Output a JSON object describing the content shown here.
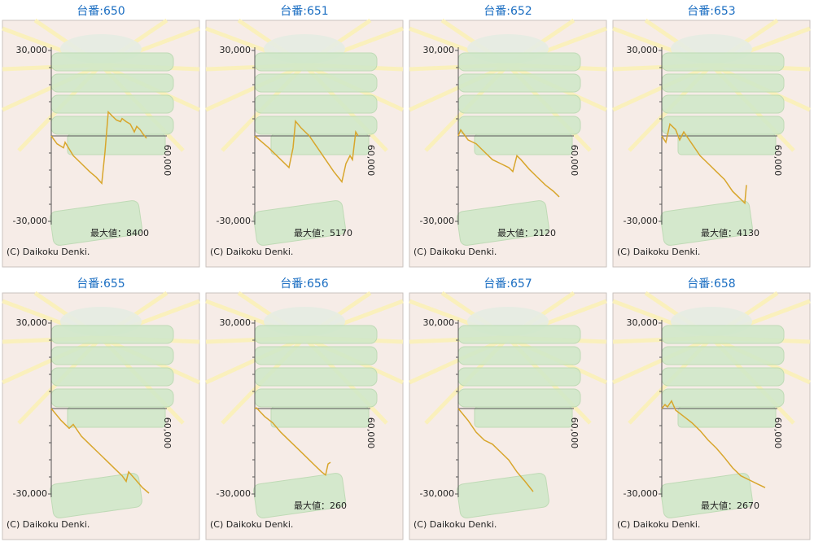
{
  "chart_data": [
    {
      "type": "line",
      "title": "台番:650",
      "color": "#d8a62c",
      "xlim": [
        0,
        60000
      ],
      "ylim": [
        -30000,
        30000
      ],
      "yticks": [
        {
          "value": 30000,
          "label": "30,000"
        },
        {
          "value": -30000,
          "label": "-30,000"
        }
      ],
      "yticks_minor": [
        -24000,
        -18000,
        -12000,
        -6000,
        6000,
        12000,
        18000,
        24000
      ],
      "xticks": [
        {
          "value": 60000,
          "label": "60,000"
        }
      ],
      "x": [
        0,
        2960,
        6340,
        7180,
        11410,
        15630,
        19860,
        23240,
        26200,
        27890,
        29580,
        31690,
        33800,
        35910,
        36760,
        38870,
        40980,
        43100,
        44360,
        46050,
        47740,
        49430
      ],
      "values": [
        0,
        -2780,
        -4170,
        -2220,
        -6950,
        -9720,
        -12500,
        -14450,
        -16670,
        -5560,
        8400,
        6950,
        5560,
        5000,
        6110,
        5000,
        4170,
        1390,
        3330,
        2220,
        560,
        -830
      ],
      "annotation": "最大値：8400",
      "footer": "(C) Daikoku Denki."
    },
    {
      "type": "line",
      "title": "台番:651",
      "color": "#d8a62c",
      "xlim": [
        0,
        60000
      ],
      "ylim": [
        -30000,
        30000
      ],
      "yticks": [
        {
          "value": 30000,
          "label": "30,000"
        },
        {
          "value": -30000,
          "label": "-30,000"
        }
      ],
      "yticks_minor": [
        -24000,
        -18000,
        -12000,
        -6000,
        6000,
        12000,
        18000,
        24000
      ],
      "xticks": [
        {
          "value": 60000,
          "label": "60,000"
        }
      ],
      "x": [
        0,
        7180,
        11410,
        17750,
        19860,
        21130,
        24080,
        28310,
        32530,
        36760,
        40980,
        45210,
        47320,
        49430,
        50700,
        52390,
        53660
      ],
      "values": [
        0,
        -4170,
        -6950,
        -11110,
        -4170,
        5170,
        2780,
        0,
        -4170,
        -8330,
        -12500,
        -16110,
        -9720,
        -6950,
        -8330,
        1390,
        0
      ],
      "annotation": "最大値：5170",
      "footer": "(C) Daikoku Denki."
    },
    {
      "type": "line",
      "title": "台番:652",
      "color": "#d8a62c",
      "xlim": [
        0,
        60000
      ],
      "ylim": [
        -30000,
        30000
      ],
      "yticks": [
        {
          "value": 30000,
          "label": "30,000"
        },
        {
          "value": -30000,
          "label": "-30,000"
        }
      ],
      "yticks_minor": [
        -24000,
        -18000,
        -12000,
        -6000,
        6000,
        12000,
        18000,
        24000
      ],
      "xticks": [
        {
          "value": 60000,
          "label": "60,000"
        }
      ],
      "x": [
        0,
        1270,
        2960,
        5070,
        9300,
        13520,
        17750,
        21970,
        26200,
        28310,
        30420,
        32530,
        36760,
        40980,
        45210,
        49430,
        52390
      ],
      "values": [
        0,
        2120,
        560,
        -1390,
        -2780,
        -5560,
        -8330,
        -9720,
        -11110,
        -12500,
        -6950,
        -8330,
        -11670,
        -14450,
        -17220,
        -19450,
        -21390
      ],
      "annotation": "最大値：2120",
      "footer": "(C) Daikoku Denki."
    },
    {
      "type": "line",
      "title": "台番:653",
      "color": "#d8a62c",
      "xlim": [
        0,
        60000
      ],
      "ylim": [
        -30000,
        30000
      ],
      "yticks": [
        {
          "value": 30000,
          "label": "30,000"
        },
        {
          "value": -30000,
          "label": "-30,000"
        }
      ],
      "yticks_minor": [
        -24000,
        -18000,
        -12000,
        -6000,
        6000,
        12000,
        18000,
        24000
      ],
      "xticks": [
        {
          "value": 60000,
          "label": "60,000"
        }
      ],
      "x": [
        0,
        2110,
        4230,
        7180,
        9300,
        11410,
        15630,
        19860,
        24080,
        28310,
        32530,
        36760,
        40980,
        43100,
        43940
      ],
      "values": [
        0,
        -2220,
        4130,
        2220,
        -1390,
        1390,
        -2780,
        -6950,
        -9720,
        -12500,
        -15280,
        -19450,
        -22220,
        -23610,
        -17220
      ],
      "annotation": "最大値：4130",
      "footer": "(C) Daikoku Denki."
    },
    {
      "type": "line",
      "title": "台番:655",
      "color": "#d8a62c",
      "xlim": [
        0,
        60000
      ],
      "ylim": [
        -30000,
        30000
      ],
      "yticks": [
        {
          "value": 30000,
          "label": "30,000"
        },
        {
          "value": -30000,
          "label": "-30,000"
        }
      ],
      "yticks_minor": [
        -24000,
        -18000,
        -12000,
        -6000,
        6000,
        12000,
        18000,
        24000
      ],
      "xticks": [
        {
          "value": 60000,
          "label": "60,000"
        }
      ],
      "x": [
        0,
        5070,
        9300,
        11410,
        15630,
        19860,
        24080,
        28310,
        32530,
        36760,
        38870,
        40140,
        43100,
        47320,
        50700
      ],
      "values": [
        0,
        -4170,
        -6950,
        -5560,
        -9720,
        -12500,
        -15280,
        -18060,
        -20830,
        -23610,
        -25560,
        -22220,
        -24450,
        -27780,
        -29720
      ],
      "footer": "(C) Daikoku Denki."
    },
    {
      "type": "line",
      "title": "台番:656",
      "color": "#d8a62c",
      "xlim": [
        0,
        60000
      ],
      "ylim": [
        -30000,
        30000
      ],
      "yticks": [
        {
          "value": 30000,
          "label": "30,000"
        },
        {
          "value": -30000,
          "label": "-30,000"
        }
      ],
      "yticks_minor": [
        -24000,
        -18000,
        -12000,
        -6000,
        6000,
        12000,
        18000,
        24000
      ],
      "xticks": [
        {
          "value": 60000,
          "label": "60,000"
        }
      ],
      "x": [
        0,
        850,
        5070,
        9300,
        13520,
        17750,
        21970,
        26200,
        30420,
        34650,
        36760,
        38030,
        39290
      ],
      "values": [
        0,
        260,
        -2780,
        -5000,
        -8330,
        -11110,
        -13890,
        -16670,
        -19450,
        -22220,
        -23330,
        -19450,
        -18890
      ],
      "annotation": "最大値：260",
      "footer": "(C) Daikoku Denki."
    },
    {
      "type": "line",
      "title": "台番:657",
      "color": "#d8a62c",
      "xlim": [
        0,
        60000
      ],
      "ylim": [
        -30000,
        30000
      ],
      "yticks": [
        {
          "value": 30000,
          "label": "30,000"
        },
        {
          "value": -30000,
          "label": "-30,000"
        }
      ],
      "yticks_minor": [
        -24000,
        -18000,
        -12000,
        -6000,
        6000,
        12000,
        18000,
        24000
      ],
      "xticks": [
        {
          "value": 60000,
          "label": "60,000"
        }
      ],
      "x": [
        0,
        5070,
        9300,
        13520,
        17750,
        21970,
        26200,
        30420,
        34650,
        38870
      ],
      "values": [
        0,
        -4170,
        -8330,
        -11110,
        -12500,
        -15280,
        -18060,
        -22220,
        -25560,
        -29170
      ],
      "footer": "(C) Daikoku Denki."
    },
    {
      "type": "line",
      "title": "台番:658",
      "color": "#d8a62c",
      "xlim": [
        0,
        60000
      ],
      "ylim": [
        -30000,
        30000
      ],
      "yticks": [
        {
          "value": 30000,
          "label": "30,000"
        },
        {
          "value": -30000,
          "label": "-30,000"
        }
      ],
      "yticks_minor": [
        -24000,
        -18000,
        -12000,
        -6000,
        6000,
        12000,
        18000,
        24000
      ],
      "xticks": [
        {
          "value": 60000,
          "label": "60,000"
        }
      ],
      "x": [
        0,
        1690,
        2960,
        5070,
        7180,
        11410,
        15630,
        19860,
        24080,
        28310,
        32530,
        36760,
        40980,
        45210,
        49430,
        53660
      ],
      "values": [
        0,
        1390,
        560,
        2670,
        -560,
        -2780,
        -5000,
        -7780,
        -11110,
        -13890,
        -17220,
        -20830,
        -23610,
        -25000,
        -26390,
        -27780
      ],
      "annotation": "最大値：2670",
      "footer": "(C) Daikoku Denki."
    }
  ]
}
